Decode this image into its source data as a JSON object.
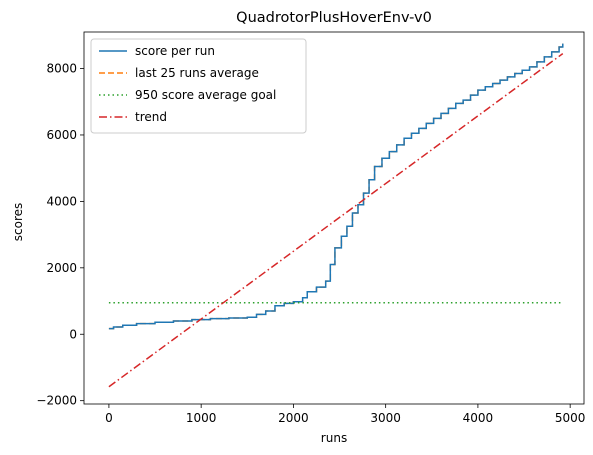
{
  "chart_data": {
    "type": "line",
    "title": "QuadrotorPlusHoverEnv-v0",
    "xlabel": "runs",
    "ylabel": "scores",
    "xlim": [
      -270,
      5150
    ],
    "ylim": [
      -2100,
      9100
    ],
    "xticks": [
      0,
      1000,
      2000,
      3000,
      4000,
      5000
    ],
    "xtick_labels": [
      "0",
      "1000",
      "2000",
      "3000",
      "4000",
      "5000"
    ],
    "yticks": [
      -2000,
      0,
      2000,
      4000,
      6000,
      8000
    ],
    "ytick_labels": [
      "−2000",
      "0",
      "2000",
      "4000",
      "6000",
      "8000"
    ],
    "grid": false,
    "legend_position": "upper-left",
    "series": [
      {
        "name": "score per run",
        "color": "#1f77b4",
        "style": "solid",
        "step": true,
        "x": [
          0,
          50,
          150,
          300,
          500,
          700,
          900,
          1100,
          1300,
          1500,
          1600,
          1700,
          1800,
          1900,
          2000,
          2100,
          2150,
          2250,
          2350,
          2400,
          2450,
          2520,
          2580,
          2640,
          2700,
          2760,
          2820,
          2880,
          2960,
          3040,
          3120,
          3200,
          3280,
          3360,
          3440,
          3520,
          3600,
          3680,
          3760,
          3840,
          3920,
          4000,
          4080,
          4160,
          4240,
          4320,
          4400,
          4480,
          4560,
          4640,
          4720,
          4800,
          4880,
          4920
        ],
        "values": [
          170,
          220,
          270,
          320,
          360,
          400,
          440,
          470,
          490,
          510,
          600,
          700,
          860,
          930,
          980,
          1100,
          1280,
          1420,
          1600,
          2100,
          2600,
          2950,
          3250,
          3650,
          3900,
          4250,
          4650,
          5050,
          5300,
          5500,
          5700,
          5900,
          6050,
          6200,
          6350,
          6500,
          6650,
          6800,
          6950,
          7050,
          7200,
          7350,
          7450,
          7550,
          7650,
          7750,
          7850,
          7950,
          8050,
          8200,
          8350,
          8500,
          8650,
          8750
        ]
      },
      {
        "name": "last 25 runs average",
        "color": "#ff7f0e",
        "style": "dashed",
        "step": true,
        "x": [
          0,
          50,
          150,
          300,
          500,
          700,
          900,
          1100,
          1300,
          1500,
          1600,
          1700,
          1800,
          1900,
          2000,
          2100,
          2150,
          2250,
          2350,
          2400,
          2450,
          2520,
          2580,
          2640,
          2700,
          2760,
          2820,
          2880,
          2960,
          3040,
          3120,
          3200,
          3280,
          3360,
          3440,
          3520,
          3600,
          3680,
          3760,
          3840,
          3920,
          4000,
          4080,
          4160,
          4240,
          4320,
          4400,
          4480,
          4560,
          4640,
          4720,
          4800,
          4880,
          4920
        ],
        "values": [
          170,
          220,
          270,
          320,
          360,
          400,
          440,
          470,
          490,
          510,
          600,
          700,
          860,
          930,
          980,
          1100,
          1280,
          1420,
          1600,
          2100,
          2600,
          2950,
          3250,
          3650,
          3900,
          4250,
          4650,
          5050,
          5300,
          5500,
          5700,
          5900,
          6050,
          6200,
          6350,
          6500,
          6650,
          6800,
          6950,
          7050,
          7200,
          7350,
          7450,
          7550,
          7650,
          7750,
          7850,
          7950,
          8050,
          8200,
          8350,
          8500,
          8650,
          8750
        ]
      },
      {
        "name": "950 score average goal",
        "color": "#2ca02c",
        "style": "dotted",
        "x": [
          0,
          4920
        ],
        "values": [
          950,
          950
        ]
      },
      {
        "name": "trend",
        "color": "#d62728",
        "style": "dashdot",
        "x": [
          0,
          4920
        ],
        "values": [
          -1580,
          8450
        ]
      }
    ]
  }
}
